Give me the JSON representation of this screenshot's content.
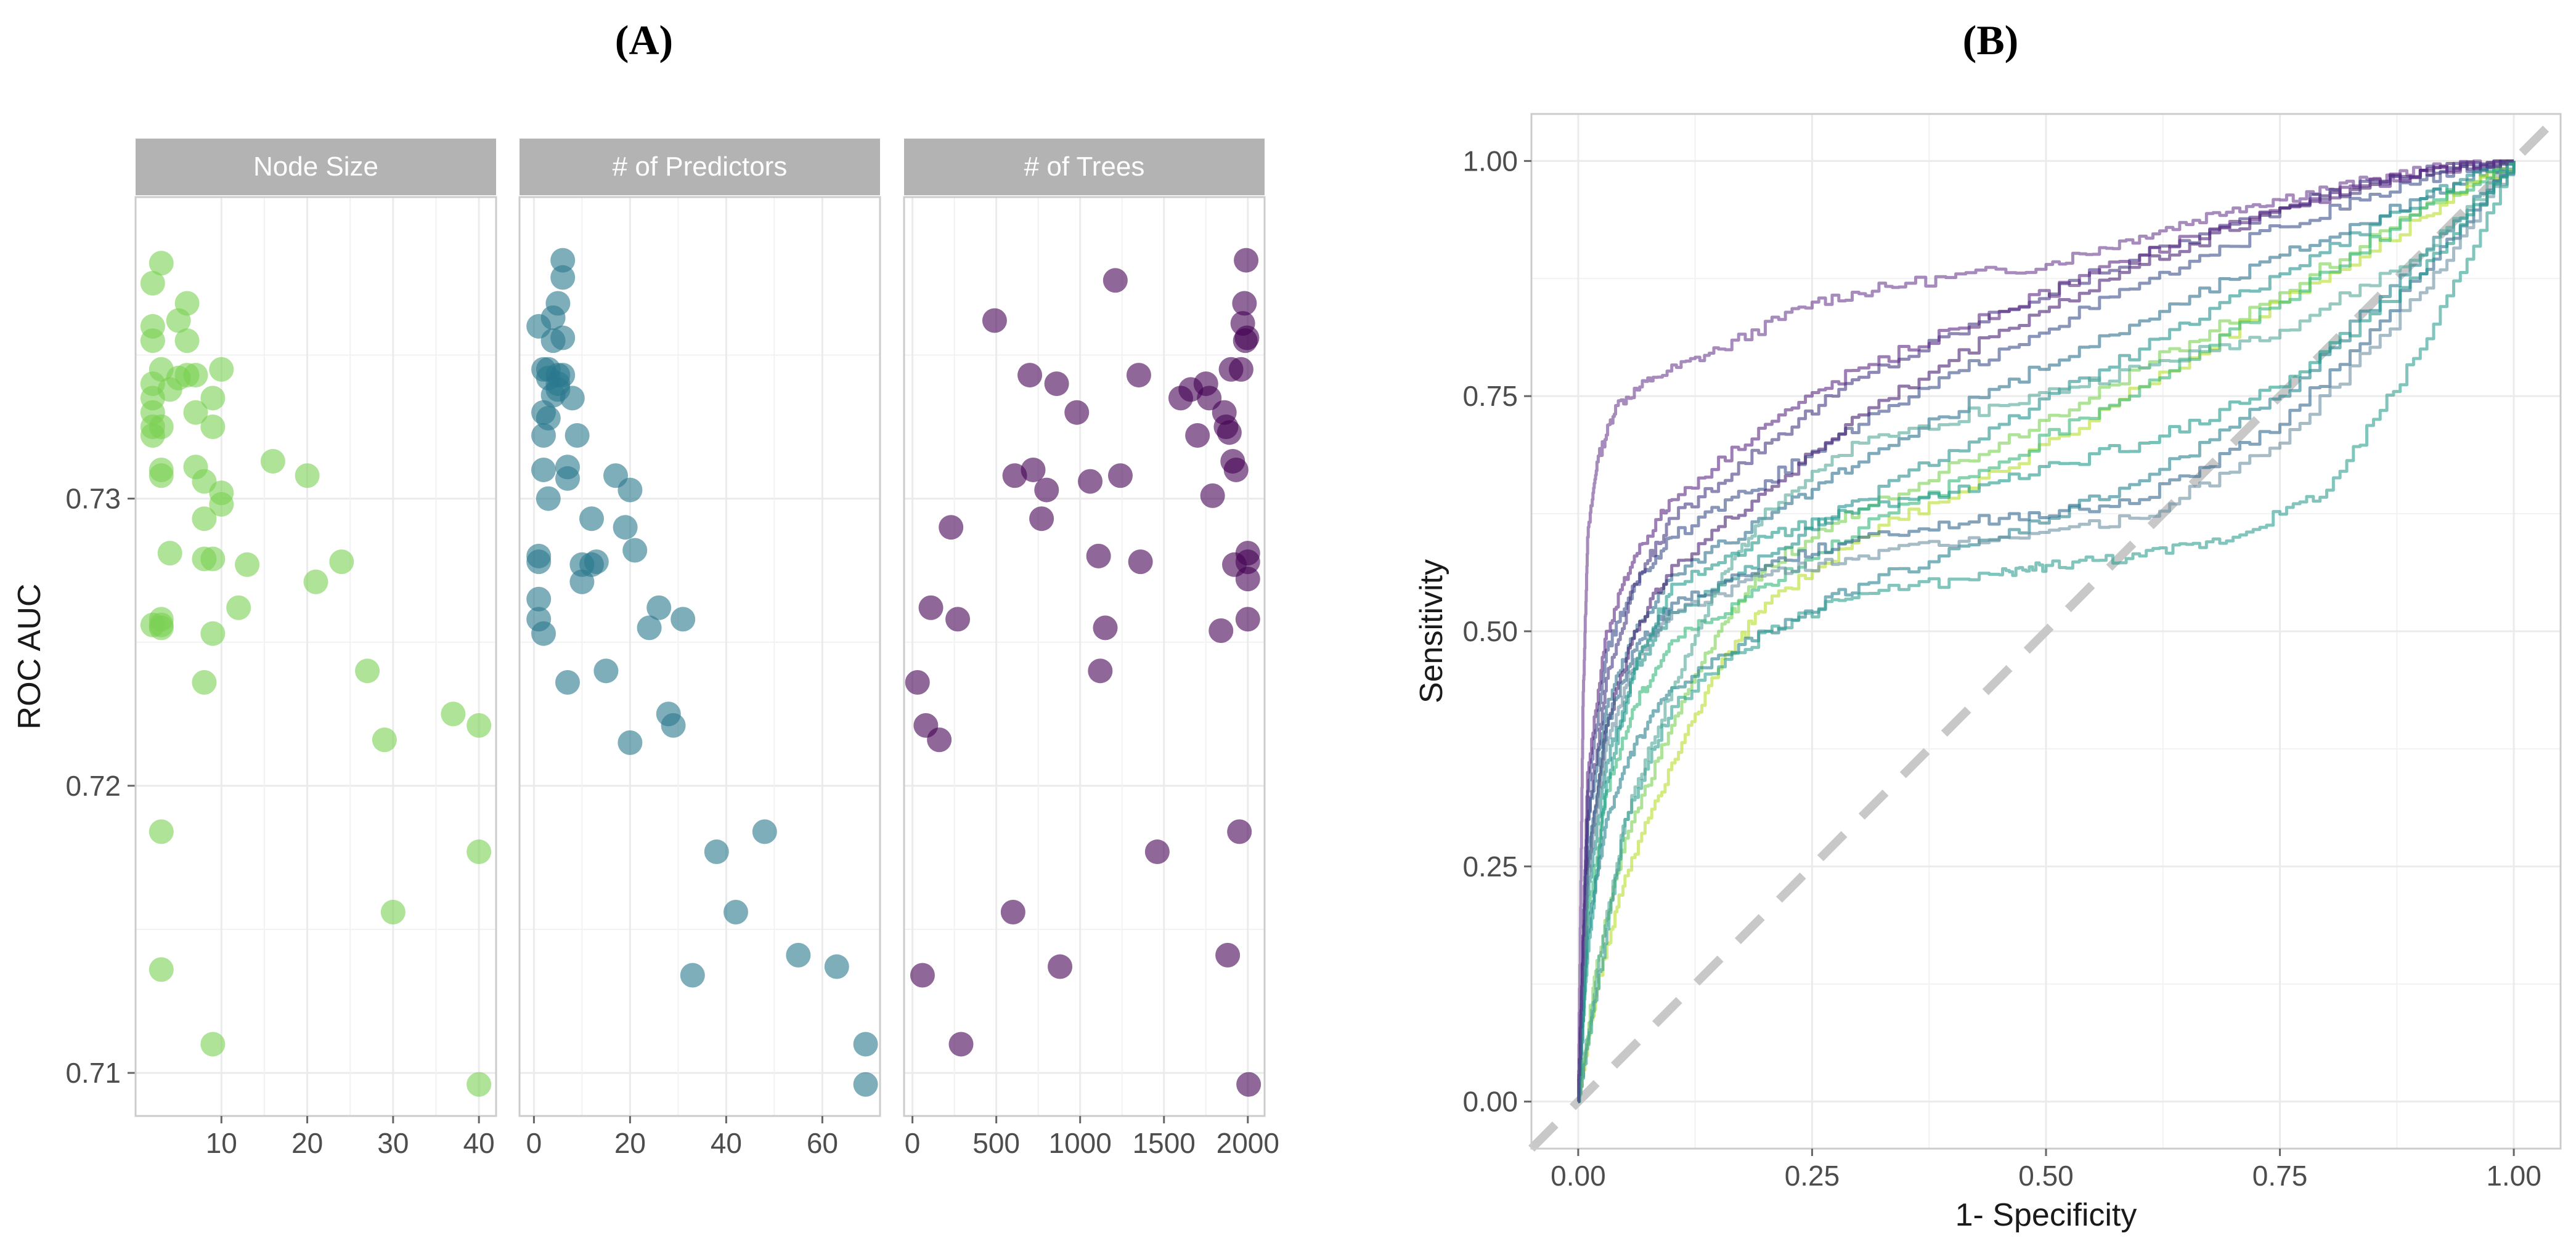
{
  "panels": {
    "a_label": "(A)",
    "b_label": "(B)"
  },
  "colors": {
    "node_size": "#7ad151",
    "predictors": "#2a788e",
    "trees": "#440154",
    "grid": "#ebebeb",
    "strip": "#b3b3b3",
    "diag": "#c8c8c8"
  },
  "chart_data": [
    {
      "type": "scatter",
      "panel": "A",
      "ylabel": "ROC AUC",
      "ylim": [
        0.7085,
        0.7405
      ],
      "y_ticks": [
        0.71,
        0.72,
        0.73
      ],
      "y_tick_labels": [
        "0.71",
        "0.72",
        "0.73"
      ],
      "facets": [
        {
          "title": "Node Size",
          "xlim": [
            0,
            42
          ],
          "x_ticks": [
            10,
            20,
            30,
            40
          ],
          "x_tick_labels": [
            "10",
            "20",
            "30",
            "40"
          ],
          "x": [
            2,
            2,
            2,
            2,
            2,
            2,
            3,
            2,
            3,
            3,
            3,
            4,
            2,
            3,
            3,
            4,
            5,
            5,
            6,
            6,
            6,
            7,
            7,
            7,
            8,
            8,
            8,
            8,
            9,
            9,
            9,
            9,
            10,
            10,
            10,
            12,
            13,
            16,
            20,
            21,
            24,
            27,
            29,
            30,
            37,
            40,
            40,
            3,
            3,
            3,
            2,
            3,
            9,
            40
          ],
          "y": [
            0.7375,
            0.736,
            0.7355,
            0.734,
            0.7335,
            0.733,
            0.7345,
            0.7325,
            0.731,
            0.7308,
            0.7325,
            0.7338,
            0.7322,
            0.7382,
            0.7258,
            0.7281,
            0.7362,
            0.7342,
            0.7368,
            0.7355,
            0.7343,
            0.733,
            0.7343,
            0.7311,
            0.7306,
            0.7293,
            0.7279,
            0.7236,
            0.7279,
            0.7325,
            0.7335,
            0.7253,
            0.7302,
            0.7298,
            0.7345,
            0.7262,
            0.7277,
            0.7313,
            0.7308,
            0.7271,
            0.7278,
            0.724,
            0.7216,
            0.7156,
            0.7225,
            0.7221,
            0.7177,
            0.7184,
            0.7136,
            0.7255,
            0.7256,
            0.7256,
            0.711,
            0.7096
          ]
        },
        {
          "title": "# of Predictors",
          "xlim": [
            -3,
            72
          ],
          "x_ticks": [
            0,
            20,
            40,
            60
          ],
          "x_tick_labels": [
            "0",
            "20",
            "40",
            "60"
          ],
          "x": [
            1,
            2,
            2,
            2,
            2,
            3,
            3,
            3,
            4,
            4,
            5,
            5,
            5,
            6,
            6,
            6,
            7,
            8,
            9,
            1,
            1,
            2,
            1,
            1,
            3,
            4,
            5,
            6,
            7,
            7,
            10,
            10,
            12,
            12,
            13,
            15,
            17,
            19,
            20,
            20,
            21,
            24,
            26,
            28,
            29,
            31,
            33,
            38,
            42,
            48,
            55,
            63,
            69,
            69
          ],
          "y": [
            0.736,
            0.7345,
            0.733,
            0.7322,
            0.731,
            0.73,
            0.7328,
            0.7342,
            0.7363,
            0.7355,
            0.7343,
            0.7338,
            0.7368,
            0.7356,
            0.7377,
            0.7383,
            0.7311,
            0.7335,
            0.7322,
            0.728,
            0.7258,
            0.7253,
            0.7278,
            0.7265,
            0.7345,
            0.7336,
            0.734,
            0.7343,
            0.7236,
            0.7307,
            0.7277,
            0.7271,
            0.7293,
            0.7277,
            0.7278,
            0.724,
            0.7308,
            0.729,
            0.7303,
            0.7215,
            0.7282,
            0.7255,
            0.7262,
            0.7225,
            0.7221,
            0.7258,
            0.7134,
            0.7177,
            0.7156,
            0.7184,
            0.7141,
            0.7137,
            0.711,
            0.7096
          ]
        },
        {
          "title": "# of Trees",
          "xlim": [
            -50,
            2100
          ],
          "x_ticks": [
            0,
            500,
            1000,
            1500,
            2000
          ],
          "x_tick_labels": [
            "0",
            "500",
            "1000",
            "1500",
            "2000"
          ],
          "x": [
            30,
            60,
            80,
            110,
            160,
            230,
            270,
            290,
            490,
            600,
            610,
            700,
            720,
            770,
            800,
            860,
            880,
            980,
            1060,
            1110,
            1120,
            1150,
            1210,
            1240,
            1350,
            1360,
            1460,
            1600,
            1660,
            1700,
            1750,
            1770,
            1790,
            1840,
            1860,
            1870,
            1880,
            1890,
            1900,
            1910,
            1920,
            1930,
            1950,
            1960,
            1970,
            1980,
            1985,
            1990,
            1995,
            2000,
            2000,
            2000,
            2000,
            2005
          ],
          "y": [
            0.7236,
            0.7134,
            0.7221,
            0.7262,
            0.7216,
            0.729,
            0.7258,
            0.711,
            0.7362,
            0.7156,
            0.7308,
            0.7343,
            0.731,
            0.7293,
            0.7303,
            0.734,
            0.7137,
            0.733,
            0.7306,
            0.728,
            0.724,
            0.7255,
            0.7376,
            0.7308,
            0.7343,
            0.7278,
            0.7177,
            0.7335,
            0.7338,
            0.7322,
            0.734,
            0.7335,
            0.7301,
            0.7254,
            0.733,
            0.7325,
            0.7141,
            0.7323,
            0.7345,
            0.7313,
            0.7277,
            0.731,
            0.7184,
            0.7345,
            0.7361,
            0.7368,
            0.7355,
            0.7383,
            0.7356,
            0.7281,
            0.7272,
            0.7258,
            0.7278,
            0.7096
          ]
        }
      ]
    },
    {
      "type": "line",
      "panel": "B",
      "xlabel": "1- Specificity",
      "ylabel": "Sensitivity",
      "xlim": [
        -0.05,
        1.05
      ],
      "ylim": [
        -0.05,
        1.05
      ],
      "ticks": [
        0,
        0.25,
        0.5,
        0.75,
        1
      ],
      "tick_labels": [
        "0.00",
        "0.25",
        "0.50",
        "0.75",
        "1.00"
      ],
      "reference_line": "diagonal dashed",
      "series": [
        {
          "color": "#6a3d8f",
          "x": [
            0,
            0.005,
            0.01,
            0.02,
            0.04,
            0.08,
            0.15,
            0.25,
            0.35,
            0.5,
            0.6,
            0.7,
            0.8,
            0.9,
            1
          ],
          "y": [
            0,
            0.42,
            0.6,
            0.68,
            0.74,
            0.77,
            0.8,
            0.85,
            0.87,
            0.89,
            0.92,
            0.95,
            0.97,
            0.99,
            1
          ]
        },
        {
          "color": "#3b4f8a",
          "x": [
            0,
            0.01,
            0.03,
            0.06,
            0.1,
            0.2,
            0.3,
            0.45,
            0.6,
            0.75,
            0.9,
            1
          ],
          "y": [
            0,
            0.33,
            0.48,
            0.55,
            0.6,
            0.66,
            0.72,
            0.8,
            0.87,
            0.93,
            0.98,
            1
          ]
        },
        {
          "color": "#2c728e",
          "x": [
            0,
            0.01,
            0.03,
            0.06,
            0.1,
            0.2,
            0.3,
            0.45,
            0.6,
            0.75,
            0.9,
            1
          ],
          "y": [
            0,
            0.3,
            0.42,
            0.5,
            0.56,
            0.62,
            0.68,
            0.76,
            0.83,
            0.9,
            0.96,
            1
          ]
        },
        {
          "color": "#482173",
          "x": [
            0,
            0.01,
            0.03,
            0.06,
            0.1,
            0.2,
            0.3,
            0.45,
            0.6,
            0.75,
            0.9,
            1
          ],
          "y": [
            0,
            0.25,
            0.4,
            0.5,
            0.57,
            0.65,
            0.73,
            0.82,
            0.89,
            0.95,
            0.99,
            1
          ]
        },
        {
          "color": "#7ad151",
          "x": [
            0,
            0.02,
            0.05,
            0.1,
            0.15,
            0.2,
            0.3,
            0.45,
            0.6,
            0.75,
            0.9,
            1
          ],
          "y": [
            0,
            0.15,
            0.28,
            0.4,
            0.5,
            0.57,
            0.63,
            0.7,
            0.78,
            0.86,
            0.95,
            1
          ]
        },
        {
          "color": "#b5de2b",
          "x": [
            0,
            0.02,
            0.05,
            0.1,
            0.15,
            0.2,
            0.3,
            0.45,
            0.6,
            0.75,
            0.9,
            1
          ],
          "y": [
            0,
            0.12,
            0.24,
            0.36,
            0.46,
            0.53,
            0.6,
            0.67,
            0.76,
            0.85,
            0.94,
            1
          ]
        },
        {
          "color": "#21918c",
          "x": [
            0,
            0.01,
            0.03,
            0.06,
            0.1,
            0.2,
            0.3,
            0.45,
            0.6,
            0.75,
            0.9,
            1
          ],
          "y": [
            0,
            0.22,
            0.36,
            0.46,
            0.52,
            0.58,
            0.64,
            0.72,
            0.8,
            0.88,
            0.96,
            1
          ]
        },
        {
          "color": "#35b779",
          "x": [
            0,
            0.01,
            0.03,
            0.06,
            0.1,
            0.2,
            0.3,
            0.45,
            0.6,
            0.75,
            0.9,
            1
          ],
          "y": [
            0,
            0.2,
            0.33,
            0.42,
            0.49,
            0.55,
            0.61,
            0.68,
            0.76,
            0.85,
            0.95,
            1
          ]
        },
        {
          "color": "#31688e",
          "x": [
            0,
            0.01,
            0.03,
            0.06,
            0.1,
            0.2,
            0.3,
            0.45,
            0.6,
            0.75,
            0.9,
            1
          ],
          "y": [
            0,
            0.26,
            0.4,
            0.48,
            0.53,
            0.57,
            0.6,
            0.62,
            0.64,
            0.72,
            0.88,
            1
          ]
        },
        {
          "color": "#443983",
          "x": [
            0,
            0.01,
            0.03,
            0.06,
            0.1,
            0.2,
            0.3,
            0.45,
            0.6,
            0.75,
            0.9,
            1
          ],
          "y": [
            0,
            0.3,
            0.45,
            0.55,
            0.62,
            0.7,
            0.77,
            0.84,
            0.9,
            0.95,
            0.99,
            1
          ]
        },
        {
          "color": "#26828e",
          "x": [
            0,
            0.01,
            0.03,
            0.06,
            0.1,
            0.2,
            0.3,
            0.45,
            0.6,
            0.75,
            0.9,
            1
          ],
          "y": [
            0,
            0.18,
            0.3,
            0.38,
            0.44,
            0.5,
            0.55,
            0.6,
            0.66,
            0.75,
            0.9,
            1
          ]
        },
        {
          "color": "#6a8fa0",
          "x": [
            0,
            0.01,
            0.03,
            0.06,
            0.1,
            0.2,
            0.3,
            0.45,
            0.6,
            0.75,
            0.9,
            1
          ],
          "y": [
            0,
            0.24,
            0.38,
            0.47,
            0.52,
            0.56,
            0.58,
            0.6,
            0.62,
            0.7,
            0.86,
            1
          ]
        },
        {
          "color": "#2f9e8f",
          "x": [
            0,
            0.02,
            0.05,
            0.1,
            0.2,
            0.3,
            0.45,
            0.5,
            0.6,
            0.7,
            0.8,
            0.9,
            1
          ],
          "y": [
            0,
            0.12,
            0.3,
            0.42,
            0.5,
            0.54,
            0.56,
            0.57,
            0.58,
            0.6,
            0.65,
            0.8,
            1
          ]
        },
        {
          "color": "#52a99a",
          "x": [
            0,
            0.02,
            0.05,
            0.1,
            0.15,
            0.2,
            0.3,
            0.45,
            0.6,
            0.75,
            0.9,
            1
          ],
          "y": [
            0,
            0.14,
            0.3,
            0.44,
            0.55,
            0.63,
            0.7,
            0.74,
            0.78,
            0.82,
            0.9,
            1
          ]
        },
        {
          "color": "#1f9a8a",
          "x": [
            0,
            0.01,
            0.03,
            0.06,
            0.1,
            0.2,
            0.3,
            0.45,
            0.6,
            0.75,
            0.9,
            1
          ],
          "y": [
            0,
            0.16,
            0.34,
            0.46,
            0.55,
            0.6,
            0.63,
            0.66,
            0.7,
            0.76,
            0.88,
            1
          ]
        },
        {
          "color": "#5c2a86",
          "x": [
            0,
            0.01,
            0.03,
            0.06,
            0.1,
            0.2,
            0.3,
            0.45,
            0.6,
            0.75,
            0.9,
            1
          ],
          "y": [
            0,
            0.35,
            0.5,
            0.58,
            0.64,
            0.72,
            0.78,
            0.84,
            0.9,
            0.95,
            0.99,
            1
          ]
        }
      ]
    }
  ]
}
